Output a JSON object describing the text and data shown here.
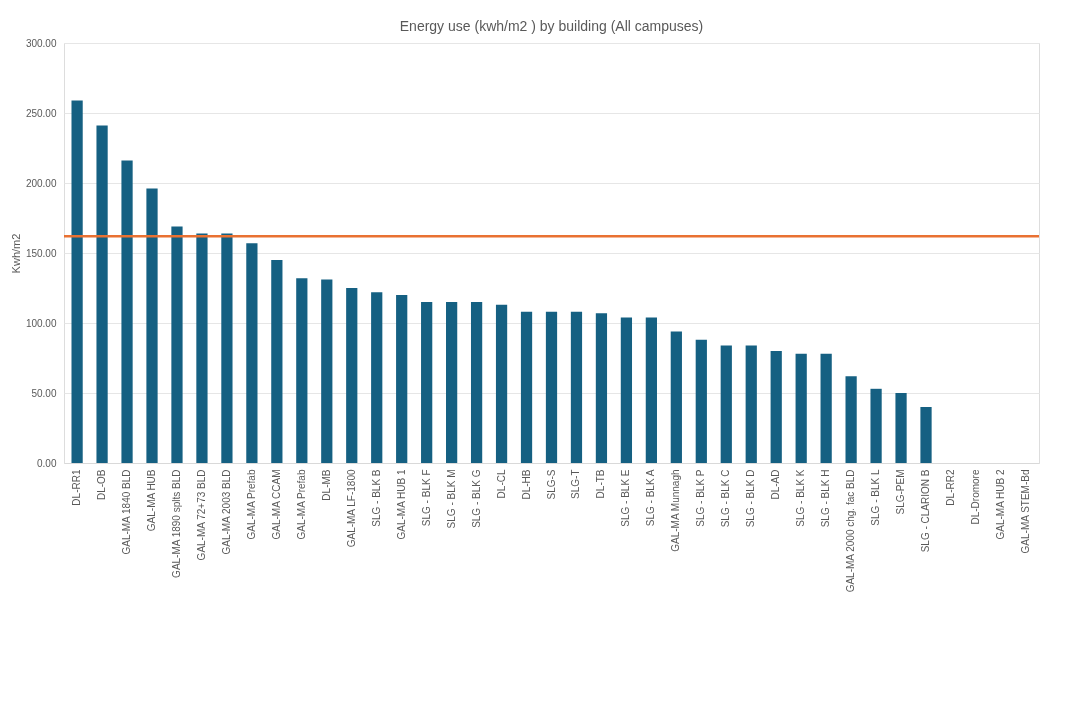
{
  "chart_data": {
    "type": "bar",
    "title": "Energy use (kwh/m2 ) by building (All campuses)",
    "ylabel": "Kwh/m2",
    "categories": [
      "DL-RR1",
      "DL-OB",
      "GAL-MA 1840 BLD",
      "GAL-MA HUB",
      "GAL-MA 1890 splts BLD",
      "GAL-MA 72+73 BLD",
      "GAL-MA 2003 BLD",
      "GAL-MA Prefab",
      "GAL-MA CCAM",
      "GAL-MA Prefab",
      "DL-MB",
      "GAL-MA LF-1800",
      "SLG - BLK B",
      "GAL-MA HUB 1",
      "SLG - BLK F",
      "SLG - BLK M",
      "SLG - BLK G",
      "DL-CL",
      "DL-HB",
      "SLG-S",
      "SLG-T",
      "DL-TB",
      "SLG - BLK E",
      "SLG - BLK A",
      "GAL-MA Munnagh",
      "SLG - BLK P",
      "SLG - BLK C",
      "SLG - BLK D",
      "DL-AD",
      "SLG - BLK K",
      "SLG - BLK H",
      "GAL-MA 2000 chg. fac BLD",
      "SLG - BLK L",
      "SLG-PEM",
      "SLG - CLARION B",
      "DL-RR2",
      "DL-Dromore",
      "GAL-MA HUB 2",
      "GAL-MA STEM-Bd"
    ],
    "values": [
      259,
      241,
      216,
      196,
      169,
      164,
      164,
      157,
      145,
      132,
      131,
      125,
      122,
      120,
      115,
      115,
      115,
      113,
      108,
      108,
      108,
      107,
      104,
      104,
      94,
      88,
      84,
      84,
      80,
      78,
      78,
      62,
      53,
      50,
      40,
      null,
      null,
      null,
      null
    ],
    "color": "#156082",
    "ylim": [
      0,
      300
    ],
    "yticks": [
      {
        "value": 0,
        "label": "0.00"
      },
      {
        "value": 50,
        "label": "50.00"
      },
      {
        "value": 100,
        "label": "100.00"
      },
      {
        "value": 150,
        "label": "150.00"
      },
      {
        "value": 200,
        "label": "200.00"
      },
      {
        "value": 250,
        "label": "250.00"
      },
      {
        "value": 300,
        "label": "300.00"
      }
    ],
    "grid": "y",
    "ref_lines": [
      {
        "axis": "y",
        "value": 162,
        "color": "#e97132"
      }
    ]
  }
}
